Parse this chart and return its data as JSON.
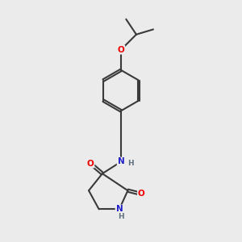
{
  "bg_color": "#ebebeb",
  "bond_color": "#3a3a3a",
  "bond_width": 1.5,
  "atom_colors": {
    "O": "#ee0000",
    "N": "#2020cc",
    "H": "#607080",
    "C": "#3a3a3a"
  },
  "font_size_atom": 7.5,
  "font_size_H": 6.5,
  "xlim": [
    0.5,
    4.5
  ],
  "ylim": [
    1.5,
    8.5
  ]
}
